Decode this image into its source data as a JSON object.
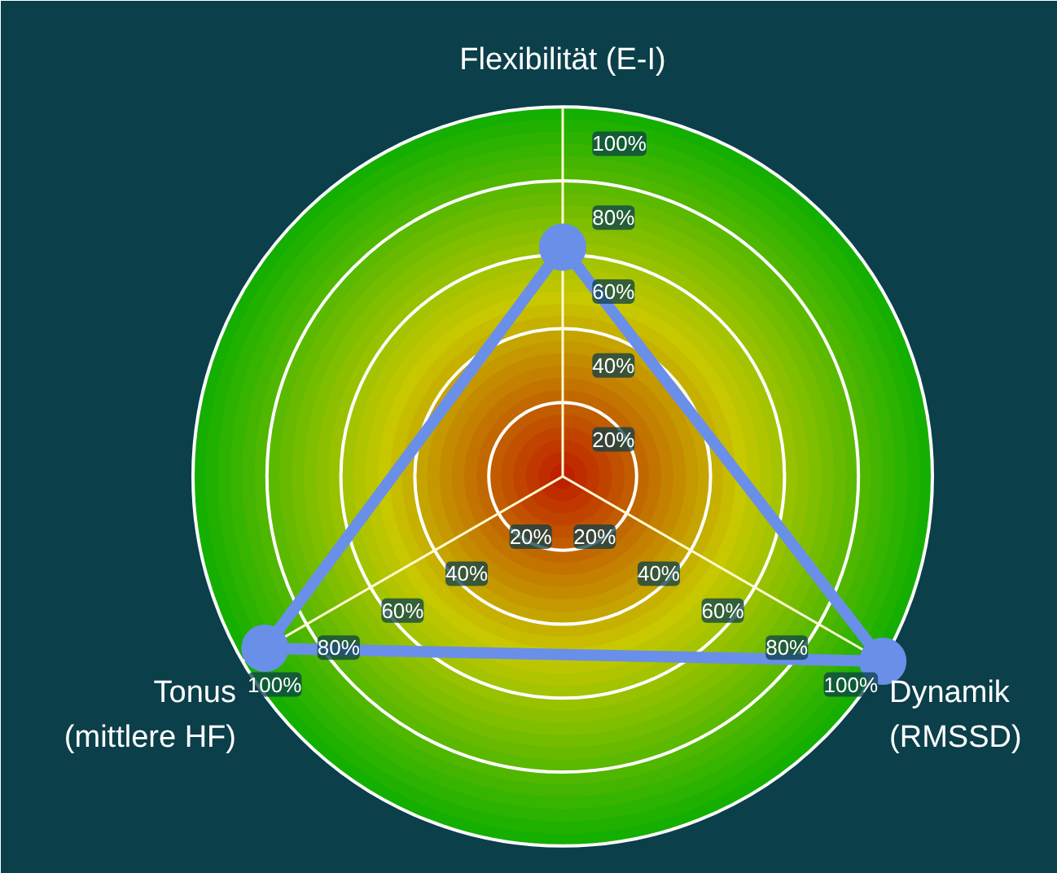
{
  "chart_data": {
    "type": "radar",
    "categories": [
      "Flexibilität (E-I)",
      "Dynamik\n(RMSSD)",
      "Tonus\n(mittlere HF)"
    ],
    "series": [
      {
        "color": "#6a8fe8",
        "values": [
          62,
          100,
          93
        ]
      }
    ],
    "ylim": [
      0,
      100
    ],
    "yticks": [
      {
        "value": 20,
        "label": "20%"
      },
      {
        "value": 40,
        "label": "40%"
      },
      {
        "value": 60,
        "label": "60%"
      },
      {
        "value": 80,
        "label": "80%"
      },
      {
        "value": 100,
        "label": "100%"
      }
    ],
    "grid": true,
    "marker": "circle",
    "line_style": "solid"
  }
}
